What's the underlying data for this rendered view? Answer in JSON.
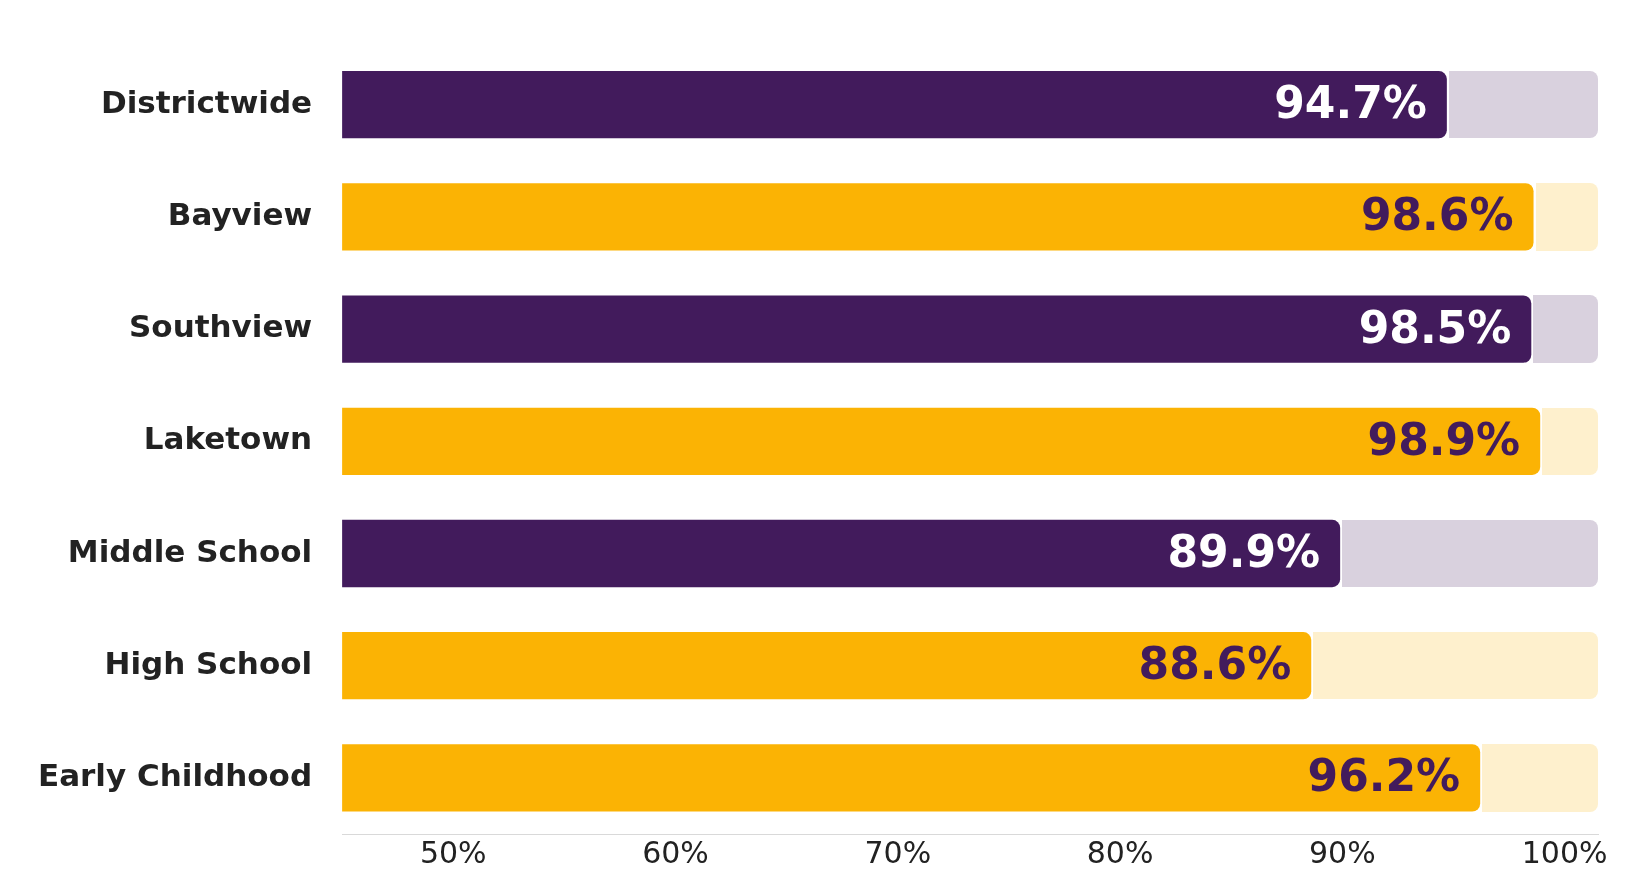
{
  "chart_data": {
    "type": "bar",
    "orientation": "horizontal",
    "categories": [
      "Districtwide",
      "Bayview",
      "Southview",
      "Laketown",
      "Middle School",
      "High School",
      "Early Childhood"
    ],
    "values": [
      94.7,
      98.6,
      98.5,
      98.9,
      89.9,
      88.6,
      96.2
    ],
    "colors": [
      "#421b5c",
      "#fbb304",
      "#421b5c",
      "#fbb304",
      "#421b5c",
      "#fbb304",
      "#fbb304"
    ],
    "value_labels": [
      "94.7%",
      "98.6%",
      "98.5%",
      "98.9%",
      "89.9%",
      "88.6%",
      "96.2%"
    ],
    "xlim": [
      45,
      101.5
    ],
    "xticks": [
      {
        "value": 50,
        "label": "50%"
      },
      {
        "value": 60,
        "label": "60%"
      },
      {
        "value": 70,
        "label": "70%"
      },
      {
        "value": 80,
        "label": "80%"
      },
      {
        "value": 90,
        "label": "90%"
      },
      {
        "value": 100,
        "label": "100%"
      }
    ],
    "grid": false,
    "legend": false
  }
}
